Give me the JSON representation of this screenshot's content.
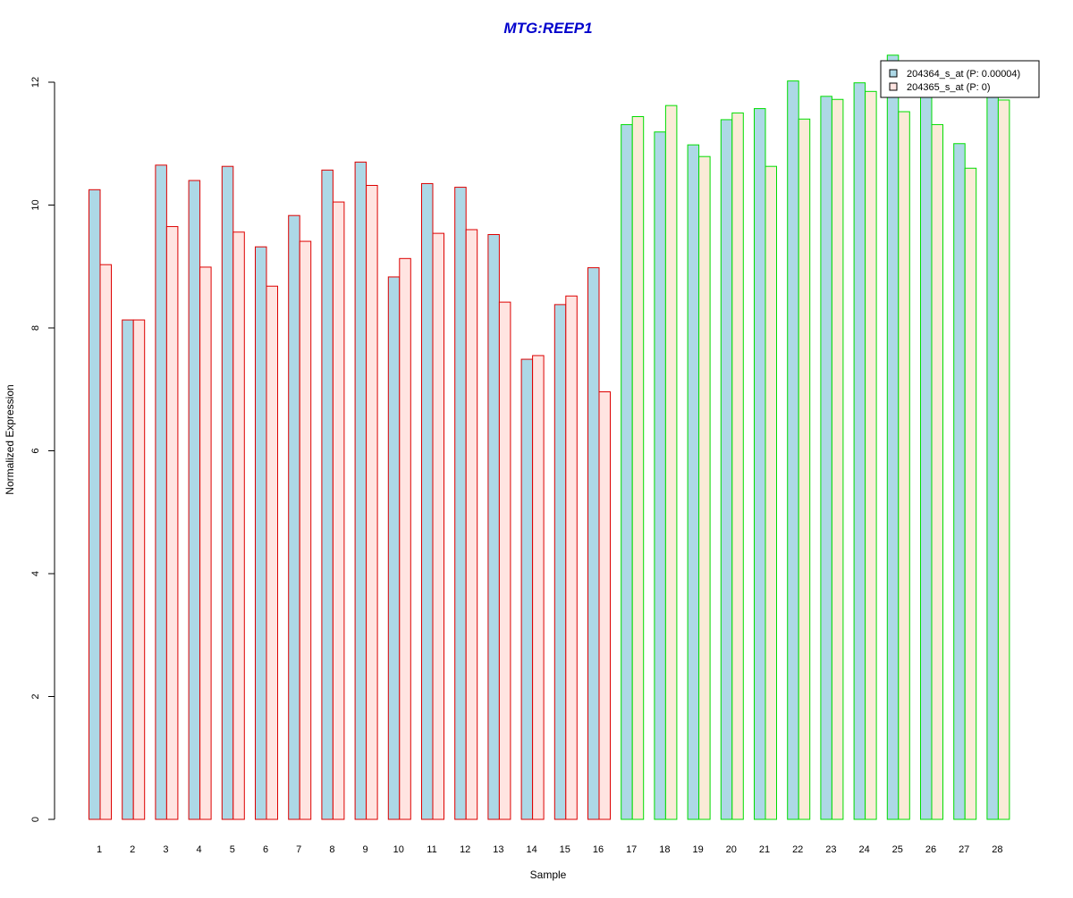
{
  "chart_data": {
    "type": "bar",
    "title": "MTG:REEP1",
    "xlabel": "Sample",
    "ylabel": "Normalized Expression",
    "ylim": [
      0,
      12
    ],
    "y_ticks": [
      0,
      2,
      4,
      6,
      8,
      10,
      12
    ],
    "grid": false,
    "legend_position": "top-right",
    "categories": [
      "1",
      "2",
      "3",
      "4",
      "5",
      "6",
      "7",
      "8",
      "9",
      "10",
      "11",
      "12",
      "13",
      "14",
      "15",
      "16",
      "17",
      "18",
      "19",
      "20",
      "21",
      "22",
      "23",
      "24",
      "25",
      "26",
      "27",
      "28"
    ],
    "groups": [
      {
        "samples": [
          "1",
          "2",
          "3",
          "4",
          "5",
          "6",
          "7",
          "8",
          "9",
          "10",
          "11",
          "12",
          "13",
          "14",
          "15",
          "16"
        ],
        "outline_color": "#dd0000"
      },
      {
        "samples": [
          "17",
          "18",
          "19",
          "20",
          "21",
          "22",
          "23",
          "24",
          "25",
          "26",
          "27",
          "28"
        ],
        "outline_color": "#00dd00"
      }
    ],
    "series": [
      {
        "name": "204364_s_at (P: 0.00004)",
        "fill_color": "#add8e6",
        "values": [
          10.25,
          8.13,
          10.65,
          10.4,
          10.63,
          9.32,
          9.83,
          10.57,
          10.7,
          8.83,
          10.35,
          10.29,
          9.52,
          7.49,
          8.38,
          8.98,
          11.31,
          11.19,
          10.98,
          11.39,
          11.57,
          12.02,
          11.77,
          11.99,
          12.44,
          11.87,
          11.0,
          11.92
        ]
      },
      {
        "name": "204365_s_at (P: 0)",
        "fill_color_by_group": [
          "#ffe4e1",
          "#faebd7"
        ],
        "values": [
          9.03,
          8.13,
          9.65,
          8.99,
          9.56,
          8.68,
          9.41,
          10.05,
          10.32,
          9.13,
          9.54,
          9.6,
          8.42,
          7.55,
          8.52,
          6.96,
          11.44,
          11.62,
          10.79,
          11.5,
          10.63,
          11.4,
          11.72,
          11.85,
          11.52,
          11.31,
          10.6,
          11.71
        ]
      }
    ]
  }
}
